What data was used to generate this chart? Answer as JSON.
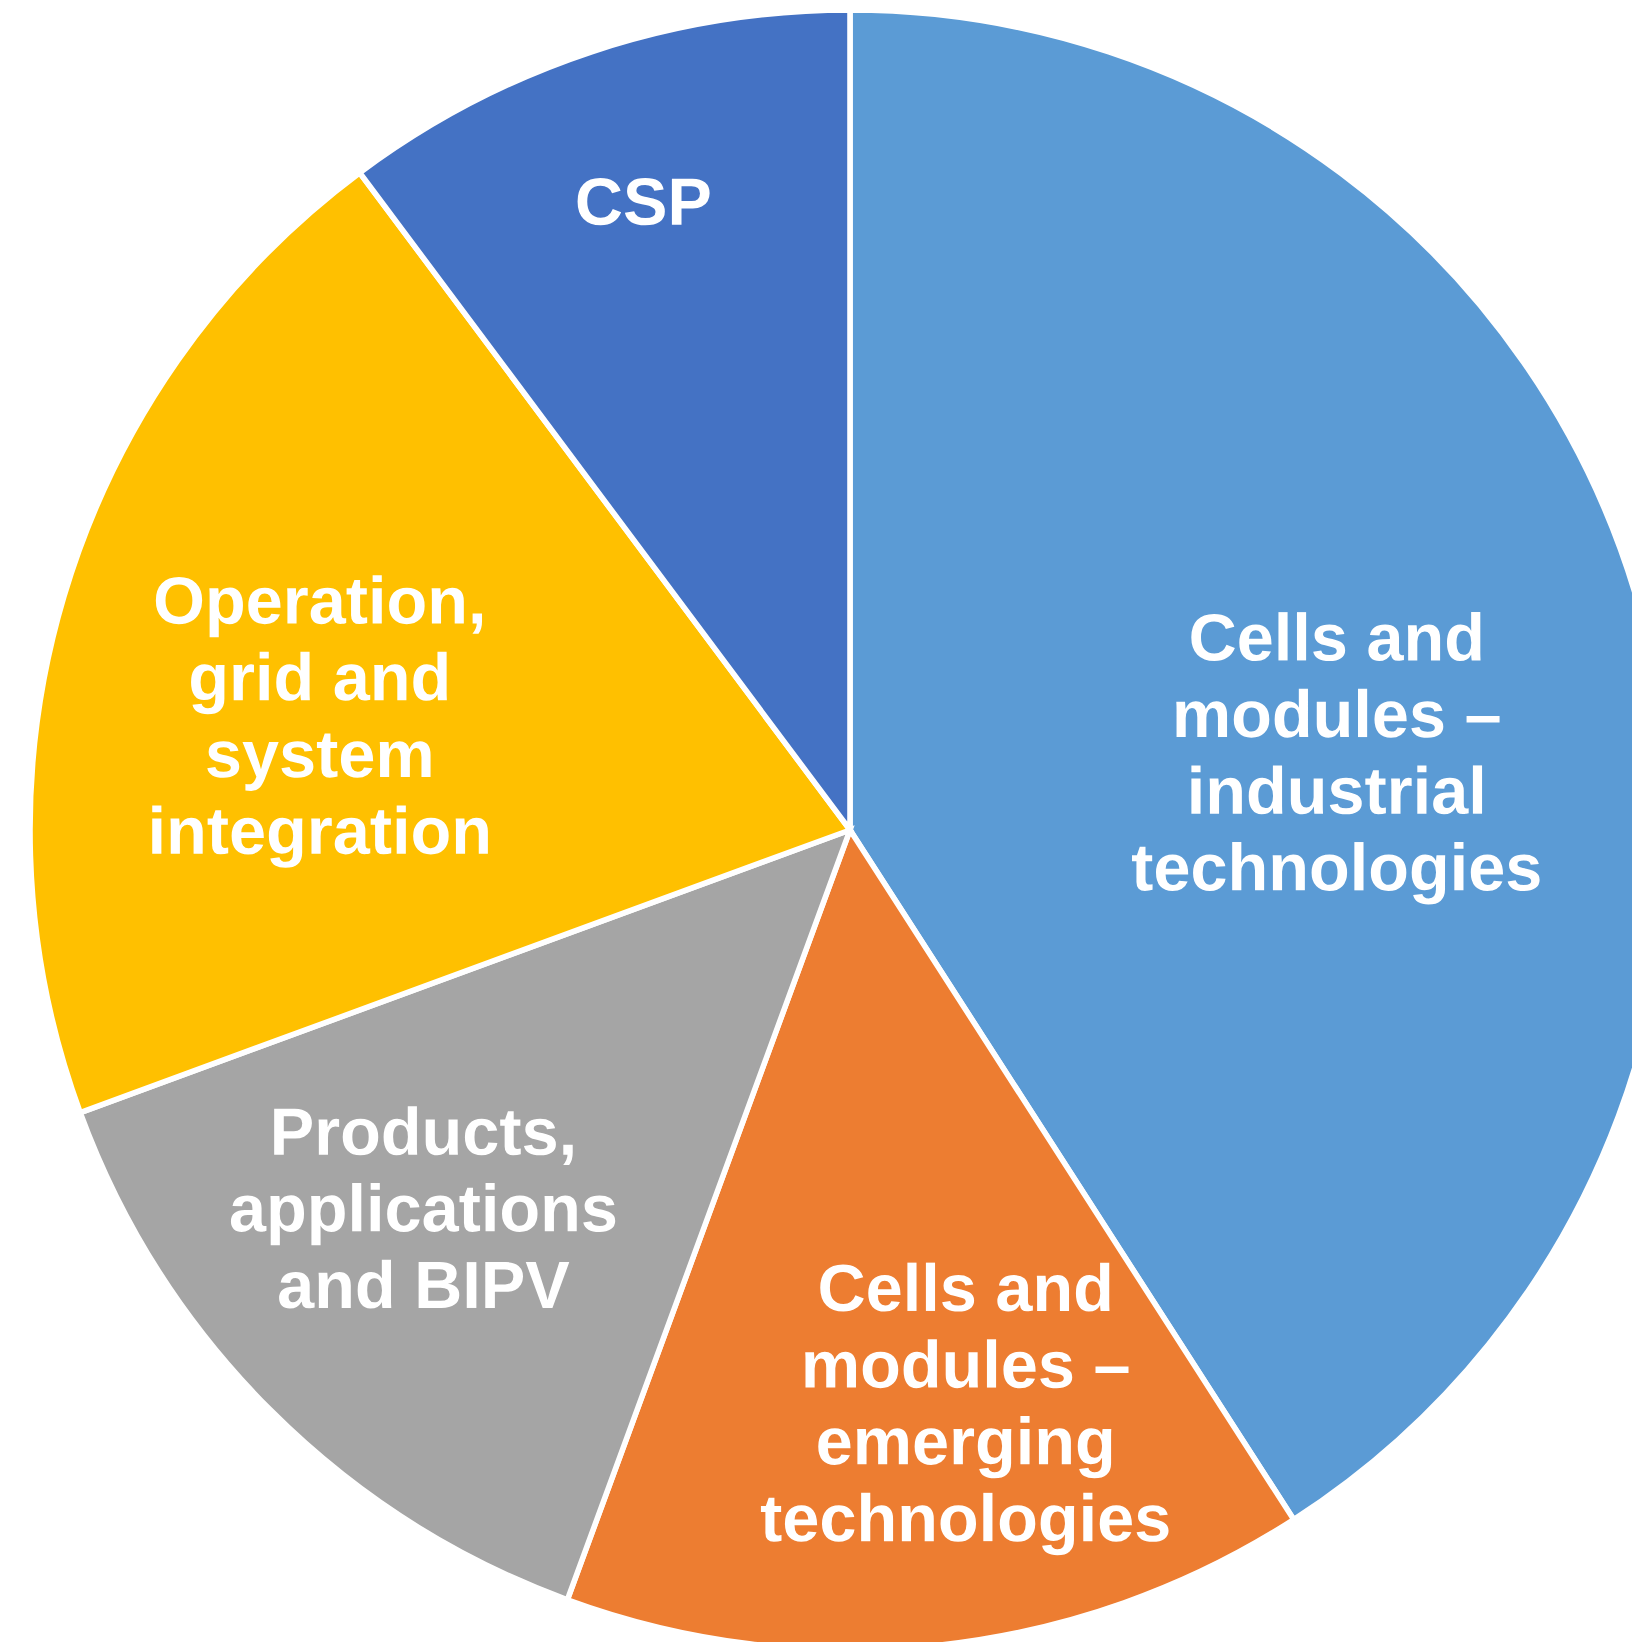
{
  "chart_data": {
    "type": "pie",
    "categories": [
      "Cells and\nmodules –\nindustrial\ntechnologies",
      "Cells and\nmodules –\nemerging\ntechnologies",
      "Products,\napplications\nand BIPV",
      "Operation,\ngrid and\nsystem\nintegration",
      "CSP"
    ],
    "values": [
      40.9,
      14.7,
      13.8,
      20.4,
      10.2
    ],
    "colors": [
      "#5b9bd5",
      "#ed7d31",
      "#a5a5a5",
      "#ffc000",
      "#4472c4"
    ]
  }
}
